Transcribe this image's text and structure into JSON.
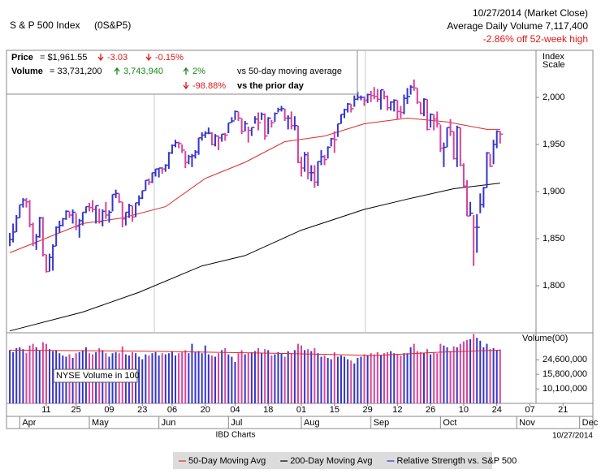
{
  "header": {
    "name": "S & P 500 Index",
    "symbol": "(0S&P5)",
    "date": "10/27/2014 (Market Close)",
    "avg_volume": "Average Daily Volume 7,117,400",
    "off_high": "-2.86% off 52-week high"
  },
  "summary": {
    "price_label": "Price",
    "price": "= $1,961.55",
    "price_change": "-3.03",
    "price_pct": "-0.15%",
    "volume_label": "Volume",
    "volume": "= 33,731,200",
    "volume_change": "3,743,940",
    "volume_pct_50": "2%",
    "vs_50": "vs 50-day moving average",
    "volume_pct_prior": "-98.88%",
    "vs_prior": "vs the prior day"
  },
  "footer": {
    "source": "IBD Charts",
    "date": "10/27/2014"
  },
  "chart_data": [
    {
      "type": "ohlc",
      "y_label": [
        "Index",
        "Scale"
      ],
      "up_color": "#3535c8",
      "down_color": "#d8449c",
      "ylim": [
        1750,
        2050
      ],
      "yticks": [
        {
          "value": 1800,
          "label": "1,800"
        },
        {
          "value": 1850,
          "label": "1,850"
        },
        {
          "value": 1900,
          "label": "1,900"
        },
        {
          "value": 1950,
          "label": "1,950"
        },
        {
          "value": 2000,
          "label": "2,000"
        }
      ],
      "xlim": [
        -1,
        176
      ],
      "xticks": [
        {
          "value": 11,
          "label": "11"
        },
        {
          "value": 20,
          "label": "25"
        },
        {
          "value": 30,
          "label": "09"
        },
        {
          "value": 40,
          "label": "23"
        },
        {
          "value": 49,
          "label": "06"
        },
        {
          "value": 59,
          "label": "20"
        },
        {
          "value": 68,
          "label": "04"
        },
        {
          "value": 78,
          "label": "18"
        },
        {
          "value": 88,
          "label": "01"
        },
        {
          "value": 98,
          "label": "15"
        },
        {
          "value": 108,
          "label": "29"
        },
        {
          "value": 117,
          "label": "12"
        },
        {
          "value": 127,
          "label": "26"
        },
        {
          "value": 137,
          "label": "10"
        },
        {
          "value": 147,
          "label": "24"
        },
        {
          "value": 157,
          "label": "07"
        },
        {
          "value": 167,
          "label": "21"
        }
      ],
      "month_ticks": [
        {
          "value": 3,
          "label": "Apr"
        },
        {
          "value": 24,
          "label": "May"
        },
        {
          "value": 45,
          "label": "Jun"
        },
        {
          "value": 66,
          "label": "Jul"
        },
        {
          "value": 88,
          "label": "Aug"
        },
        {
          "value": 109,
          "label": "Sep"
        },
        {
          "value": 130,
          "label": "Oct"
        },
        {
          "value": 153,
          "label": "Nov"
        },
        {
          "value": 172,
          "label": "Dec"
        }
      ],
      "high": [
        1856,
        1866,
        1875,
        1886,
        1893,
        1893,
        1891,
        1867,
        1855,
        1873,
        1873,
        1833,
        1834,
        1844,
        1863,
        1869,
        1872,
        1880,
        1879,
        1881,
        1877,
        1871,
        1878,
        1884,
        1888,
        1891,
        1885,
        1882,
        1881,
        1889,
        1880,
        1897,
        1902,
        1898,
        1889,
        1878,
        1887,
        1885,
        1888,
        1896,
        1901,
        1912,
        1914,
        1920,
        1924,
        1925,
        1926,
        1929,
        1942,
        1950,
        1955,
        1953,
        1950,
        1943,
        1939,
        1940,
        1944,
        1957,
        1963,
        1964,
        1968,
        1963,
        1961,
        1959,
        1961,
        1962,
        1973,
        1979,
        1986,
        1985,
        1978,
        1975,
        1969,
        1968,
        1980,
        1984,
        1984,
        1983,
        1979,
        1976,
        1984,
        1989,
        1991,
        1988,
        1981,
        1985,
        1980,
        1970,
        1937,
        1942,
        1942,
        1928,
        1928,
        1932,
        1944,
        1939,
        1948,
        1957,
        1964,
        1972,
        1982,
        1988,
        1994,
        1993,
        2002,
        2006,
        2002,
        2001,
        2004,
        2007,
        2011,
        2009,
        2008,
        2007,
        2002,
        1996,
        1998,
        1997,
        1991,
        2003,
        2010,
        2013,
        2019,
        2010,
        1995,
        1999,
        1998,
        1983,
        1982,
        1985,
        1971,
        1952,
        1968,
        1977,
        1964,
        1970,
        1968,
        1930,
        1912,
        1889,
        1875,
        1876,
        1898,
        1905,
        1942,
        1940,
        1955,
        1965,
        1964
      ],
      "low": [
        1842,
        1846,
        1857,
        1872,
        1883,
        1883,
        1862,
        1842,
        1838,
        1851,
        1831,
        1814,
        1815,
        1816,
        1842,
        1856,
        1863,
        1870,
        1872,
        1866,
        1859,
        1851,
        1864,
        1877,
        1879,
        1878,
        1866,
        1866,
        1863,
        1871,
        1867,
        1879,
        1893,
        1888,
        1862,
        1864,
        1872,
        1868,
        1873,
        1885,
        1892,
        1901,
        1907,
        1909,
        1916,
        1915,
        1919,
        1921,
        1924,
        1940,
        1947,
        1946,
        1941,
        1925,
        1929,
        1926,
        1935,
        1939,
        1954,
        1957,
        1961,
        1949,
        1948,
        1944,
        1953,
        1954,
        1962,
        1973,
        1976,
        1975,
        1961,
        1964,
        1952,
        1959,
        1972,
        1965,
        1976,
        1955,
        1961,
        1968,
        1974,
        1984,
        1985,
        1975,
        1966,
        1966,
        1965,
        1930,
        1916,
        1921,
        1913,
        1911,
        1904,
        1906,
        1928,
        1928,
        1935,
        1948,
        1941,
        1958,
        1972,
        1978,
        1984,
        1984,
        1990,
        1997,
        1997,
        1991,
        1994,
        1995,
        1998,
        1995,
        1987,
        1998,
        1986,
        1986,
        1985,
        1977,
        1978,
        1982,
        1993,
        2003,
        2007,
        1993,
        1982,
        1980,
        1965,
        1968,
        1965,
        1968,
        1942,
        1926,
        1947,
        1959,
        1934,
        1926,
        1927,
        1905,
        1874,
        1874,
        1821,
        1835,
        1877,
        1883,
        1904,
        1926,
        1929,
        1946,
        1951
      ],
      "close": [
        1849,
        1857,
        1872,
        1886,
        1891,
        1889,
        1865,
        1845,
        1852,
        1872,
        1833,
        1815,
        1830,
        1842,
        1862,
        1864,
        1871,
        1879,
        1875,
        1878,
        1863,
        1869,
        1878,
        1884,
        1883,
        1881,
        1885,
        1868,
        1879,
        1875,
        1878,
        1897,
        1898,
        1889,
        1871,
        1878,
        1885,
        1873,
        1888,
        1893,
        1901,
        1912,
        1910,
        1920,
        1924,
        1925,
        1924,
        1928,
        1941,
        1949,
        1952,
        1951,
        1944,
        1931,
        1937,
        1938,
        1942,
        1957,
        1960,
        1962,
        1962,
        1950,
        1959,
        1957,
        1961,
        1960,
        1973,
        1975,
        1985,
        1978,
        1964,
        1972,
        1965,
        1968,
        1977,
        1973,
        1982,
        1959,
        1978,
        1973,
        1983,
        1987,
        1988,
        1978,
        1978,
        1970,
        1970,
        1931,
        1925,
        1939,
        1920,
        1920,
        1910,
        1932,
        1937,
        1934,
        1947,
        1956,
        1955,
        1972,
        1982,
        1987,
        1993,
        1988,
        1998,
        2000,
        2000,
        1997,
        2003,
        2002,
        2001,
        1998,
        2008,
        2001,
        1989,
        1995,
        1997,
        1985,
        1984,
        1999,
        2001,
        2011,
        2010,
        1995,
        1983,
        1998,
        1966,
        1982,
        1977,
        1972,
        1946,
        1947,
        1968,
        1964,
        1935,
        1968,
        1928,
        1906,
        1874,
        1877,
        1862,
        1862,
        1886,
        1904,
        1941,
        1927,
        1950,
        1964,
        1961
      ],
      "lines": [
        {
          "name": "50-Day Moving Avg",
          "color": "#e02828",
          "x": [
            0,
            22,
            34,
            47,
            59,
            71,
            83,
            95,
            107,
            120,
            132,
            144,
            148
          ],
          "values": [
            1835,
            1866,
            1872,
            1884,
            1914,
            1931,
            1953,
            1959,
            1972,
            1978,
            1974,
            1966,
            1966
          ]
        },
        {
          "name": "200-Day Moving Avg",
          "color": "#000000",
          "x": [
            0,
            22,
            39,
            58,
            71,
            88,
            107,
            120,
            134,
            148
          ],
          "values": [
            1752,
            1772,
            1793,
            1821,
            1832,
            1859,
            1881,
            1892,
            1903,
            1909
          ]
        },
        {
          "name": "Relative Strength vs. S&P 500",
          "color": "#2e2ed0"
        }
      ]
    },
    {
      "type": "bar",
      "y_label": "Volume(00)",
      "annotation": "NYSE Volume in 100",
      "log_scale": true,
      "ylim": [
        6500000,
        56000000
      ],
      "yticks": [
        {
          "value": 24600000,
          "label": "24,600,000"
        },
        {
          "value": 15800000,
          "label": "15,800,000"
        },
        {
          "value": 10100000,
          "label": "10,100,000"
        }
      ],
      "values": [
        33000000.0,
        31000000.0,
        35000000.0,
        36000000.0,
        34000000.0,
        30000000.0,
        38000000.0,
        40000000.0,
        36000000.0,
        33000000.0,
        42000000.0,
        40000000.0,
        34000000.0,
        32000000.0,
        33000000.0,
        30000000.0,
        28000000.0,
        27000000.0,
        29000000.0,
        26000000.0,
        30000000.0,
        31000000.0,
        33000000.0,
        36000000.0,
        30000000.0,
        29000000.0,
        31000000.0,
        35000000.0,
        33000000.0,
        30000000.0,
        27000000.0,
        30000000.0,
        31000000.0,
        30000000.0,
        37000000.0,
        29000000.0,
        28000000.0,
        31000000.0,
        30000000.0,
        27000000.0,
        25000000.0,
        29000000.0,
        28000000.0,
        30000000.0,
        31000000.0,
        28000000.0,
        30000000.0,
        29000000.0,
        30000000.0,
        32000000.0,
        28000000.0,
        30000000.0,
        31000000.0,
        33000000.0,
        30000000.0,
        40000000.0,
        31000000.0,
        32000000.0,
        30000000.0,
        38000000.0,
        29000000.0,
        28000000.0,
        27000000.0,
        30000000.0,
        33000000.0,
        35000000.0,
        29000000.0,
        27000000.0,
        23000000.0,
        30000000.0,
        33000000.0,
        29000000.0,
        30000000.0,
        31000000.0,
        32000000.0,
        35000000.0,
        30000000.0,
        34000000.0,
        33000000.0,
        28000000.0,
        29000000.0,
        31000000.0,
        30000000.0,
        27000000.0,
        32000000.0,
        30000000.0,
        33000000.0,
        40000000.0,
        38000000.0,
        33000000.0,
        34000000.0,
        32000000.0,
        35000000.0,
        30000000.0,
        27000000.0,
        28000000.0,
        26000000.0,
        25000000.0,
        31000000.0,
        27000000.0,
        28000000.0,
        27000000.0,
        25000000.0,
        24000000.0,
        22000000.0,
        26000000.0,
        27000000.0,
        29000000.0,
        28000000.0,
        30000000.0,
        29000000.0,
        31000000.0,
        28000000.0,
        30000000.0,
        31000000.0,
        32000000.0,
        30000000.0,
        29000000.0,
        28000000.0,
        30000000.0,
        30000000.0,
        36000000.0,
        40000000.0,
        32000000.0,
        31000000.0,
        30000000.0,
        34000000.0,
        29000000.0,
        31000000.0,
        30000000.0,
        40000000.0,
        38000000.0,
        36000000.0,
        32000000.0,
        37000000.0,
        36000000.0,
        40000000.0,
        43000000.0,
        45000000.0,
        46000000.0,
        54000000.0,
        48000000.0,
        44000000.0,
        36000000.0,
        40000000.0,
        34000000.0,
        35000000.0,
        33000000.0,
        33700000.0
      ],
      "lines": [
        {
          "color": "#e02828",
          "x": [
            0,
            40,
            80,
            110,
            130,
            148
          ],
          "values": [
            33000000.0,
            32000000.0,
            30000000.0,
            28000000.0,
            31000000.0,
            33000000.0
          ]
        }
      ]
    }
  ]
}
